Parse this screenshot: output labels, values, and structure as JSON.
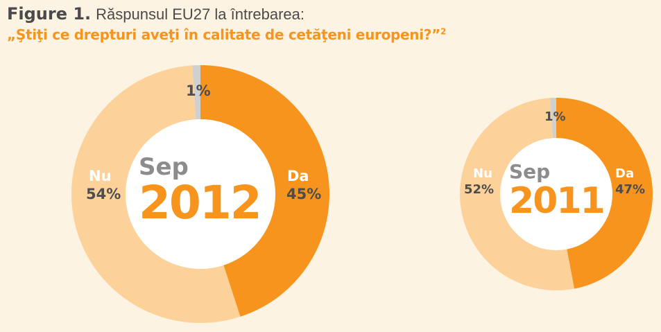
{
  "title": {
    "prefix": "Figure 1.",
    "text": "Răspunsul EU27 la întrebarea:",
    "question": "„Ştiţi ce drepturi aveţi în calitate de cetăţeni europeni?”",
    "footnote": "2"
  },
  "colors": {
    "da": "#f7941d",
    "nu": "#fdd29a",
    "other": "#d0d0d0",
    "background": "#fdf3e3"
  },
  "chart_data": [
    {
      "type": "pie",
      "month": "Sep",
      "year": "2012",
      "categories": [
        "Da",
        "Nu",
        ""
      ],
      "values": [
        45,
        54,
        1
      ],
      "labels": [
        "45%",
        "54%",
        "1%"
      ]
    },
    {
      "type": "pie",
      "month": "Sep",
      "year": "2011",
      "categories": [
        "Da",
        "Nu",
        ""
      ],
      "values": [
        47,
        52,
        1
      ],
      "labels": [
        "47%",
        "52%",
        "1%"
      ]
    }
  ]
}
